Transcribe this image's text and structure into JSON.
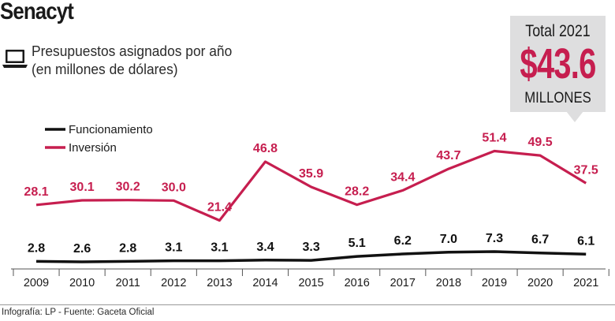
{
  "header": {
    "title": "Senacyt",
    "subtitle_line1": "Presupuestos asignados por año",
    "subtitle_line2": "(en millones de dólares)"
  },
  "callout": {
    "label": "Total 2021",
    "value": "$43.6",
    "unit": "MILLONES"
  },
  "footer": {
    "credit": "Infografía: LP - Fuente: Gaceta Oficial"
  },
  "colors": {
    "funcionamiento": "#111111",
    "inversion": "#c61e4f",
    "callout_bg": "#dededf"
  },
  "chart_data": {
    "type": "line",
    "title": "Presupuestos asignados por año",
    "ylabel": "(en millones de dólares)",
    "legend_position": "top-left",
    "categories": [
      "2009",
      "2010",
      "2011",
      "2012",
      "2013",
      "2014",
      "2015",
      "2016",
      "2017",
      "2018",
      "2019",
      "2020",
      "2021"
    ],
    "series": [
      {
        "name": "Funcionamiento",
        "values": [
          2.8,
          2.6,
          2.8,
          3.1,
          3.1,
          3.4,
          3.3,
          5.1,
          6.2,
          7.0,
          7.3,
          6.7,
          6.1
        ],
        "labels": [
          "2.8",
          "2.6",
          "2.8",
          "3.1",
          "3.1",
          "3.4",
          "3.3",
          "5.1",
          "6.2",
          "7.0",
          "7.3",
          "6.7",
          "6.1"
        ]
      },
      {
        "name": "Inversión",
        "values": [
          28.1,
          30.1,
          30.2,
          30.0,
          21.4,
          46.8,
          35.9,
          28.2,
          34.4,
          43.7,
          51.4,
          49.5,
          37.5
        ],
        "labels": [
          "28.1",
          "30.1",
          "30.2",
          "30.0",
          "21.4",
          "46.8",
          "35.9",
          "28.2",
          "34.4",
          "43.7",
          "51.4",
          "49.5",
          "37.5"
        ]
      }
    ]
  }
}
